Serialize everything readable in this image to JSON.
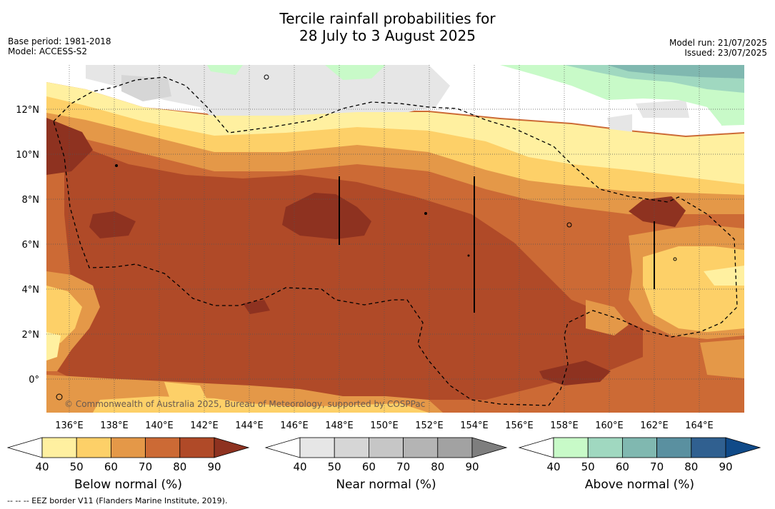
{
  "header": {
    "title_line1": "Tercile rainfall probabilities for",
    "title_line2": "28 July to 3 August 2025",
    "base_period": "Base period: 1981-2018",
    "model": "Model: ACCESS-S2",
    "model_run": "Model run: 21/07/2025",
    "issued": "Issued: 23/07/2025"
  },
  "map": {
    "lat_labels": [
      "12°N",
      "10°N",
      "8°N",
      "6°N",
      "4°N",
      "2°N",
      "0°"
    ],
    "lon_labels": [
      "136°E",
      "138°E",
      "140°E",
      "142°E",
      "144°E",
      "146°E",
      "148°E",
      "150°E",
      "152°E",
      "154°E",
      "156°E",
      "158°E",
      "160°E",
      "162°E",
      "164°E"
    ],
    "copyright": "© Commonwealth of Australia 2025, Bureau of Meteorology, supported by COSPPac"
  },
  "colorbars": [
    {
      "title": "Below normal (%)",
      "ticks": [
        "40",
        "50",
        "60",
        "70",
        "80",
        "90"
      ],
      "colors": [
        "#ffffff",
        "#fff0a0",
        "#fdd068",
        "#e49848",
        "#cc6a35",
        "#b04a28",
        "#8e3220"
      ]
    },
    {
      "title": "Near normal (%)",
      "ticks": [
        "40",
        "50",
        "60",
        "70",
        "80",
        "90"
      ],
      "colors": [
        "#ffffff",
        "#e6e6e6",
        "#d6d6d6",
        "#c6c6c6",
        "#b4b4b4",
        "#a2a2a2",
        "#7e7e7e"
      ]
    },
    {
      "title": "Above normal (%)",
      "ticks": [
        "40",
        "50",
        "60",
        "70",
        "80",
        "90"
      ],
      "colors": [
        "#ffffff",
        "#c8fac8",
        "#a0d8c0",
        "#80b8b0",
        "#5a90a0",
        "#306090",
        "#104a88"
      ]
    }
  ],
  "footnote": "-- -- -- EEZ border V11 (Flanders Marine Institute, 2019)."
}
